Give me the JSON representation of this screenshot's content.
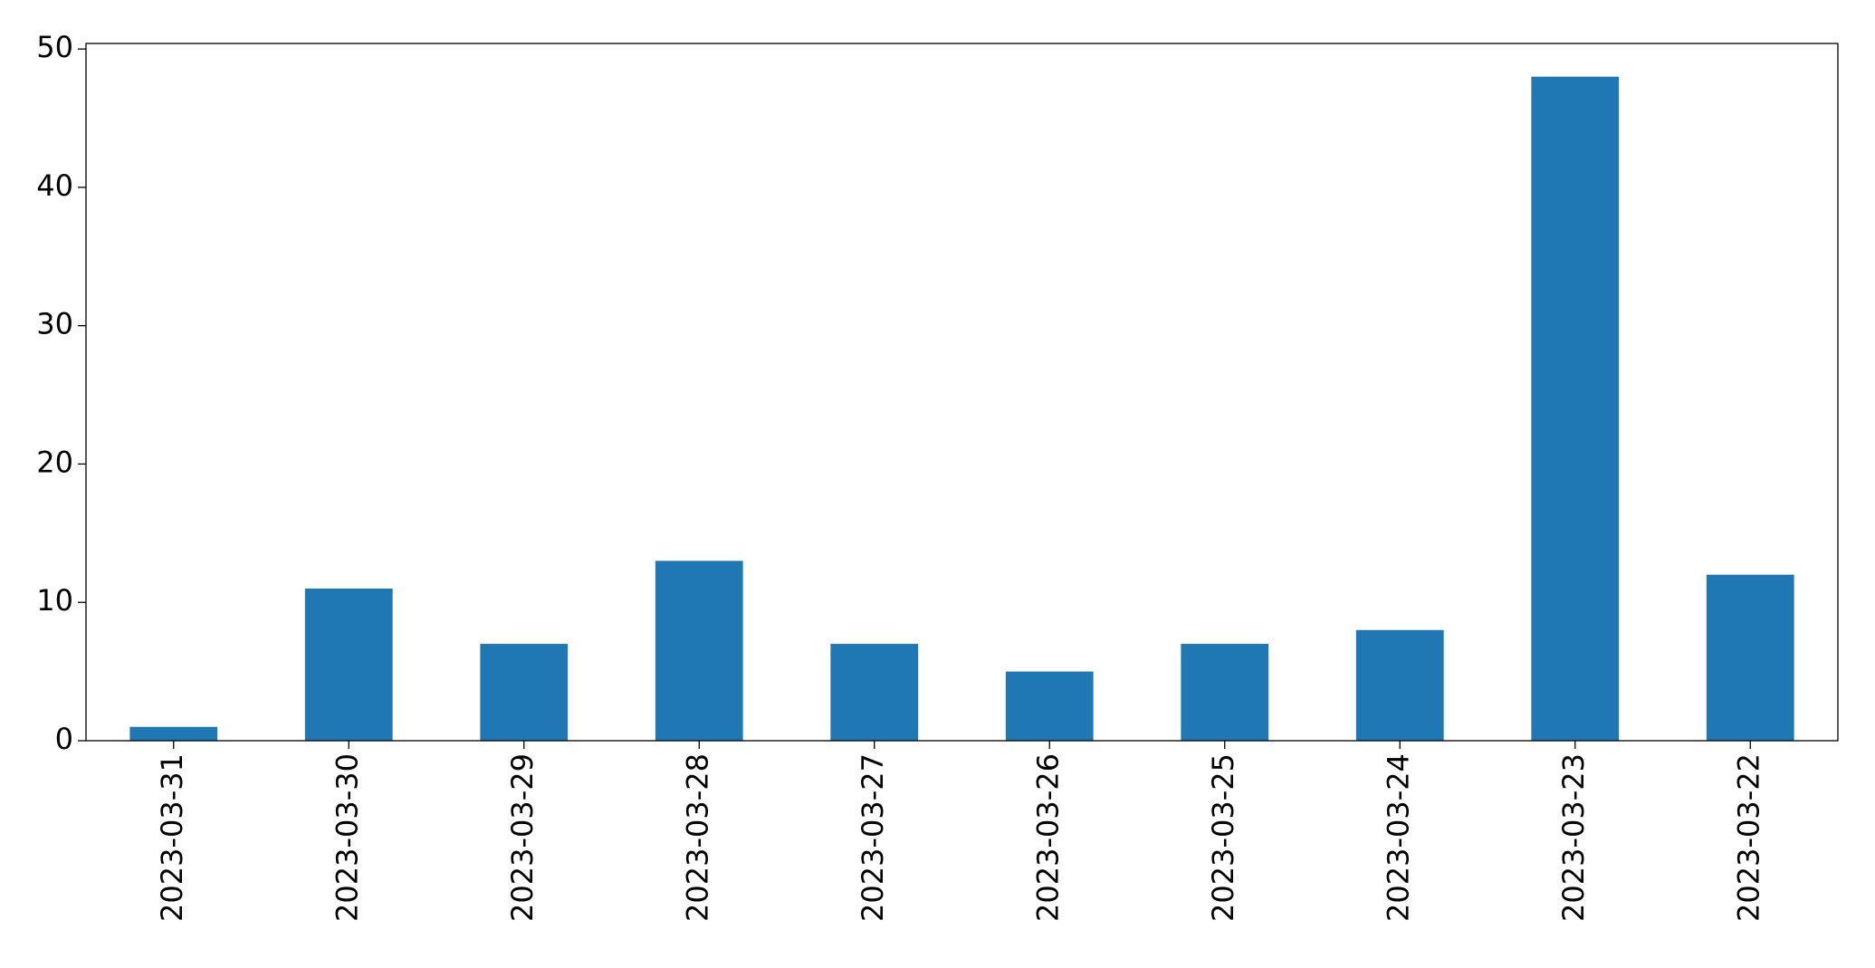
{
  "chart_data": {
    "type": "bar",
    "categories": [
      "2023-03-31",
      "2023-03-30",
      "2023-03-29",
      "2023-03-28",
      "2023-03-27",
      "2023-03-26",
      "2023-03-25",
      "2023-03-24",
      "2023-03-23",
      "2023-03-22"
    ],
    "values": [
      1,
      11,
      7,
      13,
      7,
      5,
      7,
      8,
      48,
      12
    ],
    "color": "#1f77b4",
    "ylim": [
      0,
      50.4
    ],
    "yticks": [
      0,
      10,
      20,
      30,
      40,
      50
    ],
    "grid": false
  }
}
